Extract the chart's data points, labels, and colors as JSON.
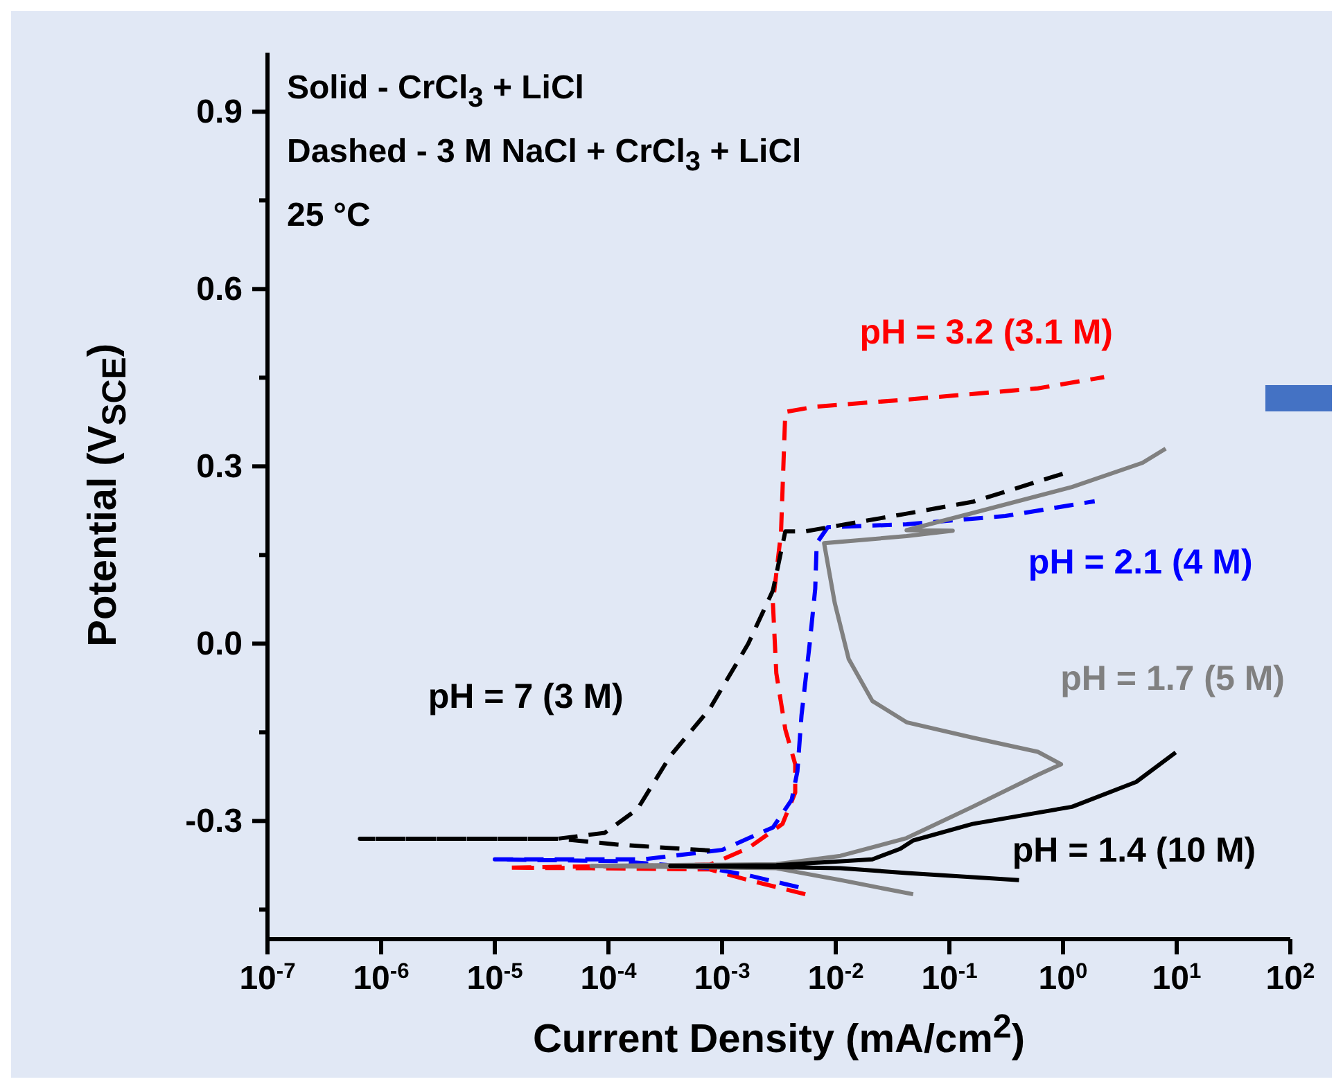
{
  "chart_data": {
    "type": "line",
    "xlabel": "Current Density (mA/cm$^{2}$)",
    "ylabel": "Potential (V$_{SCE}$)",
    "log": "x",
    "xlim": [
      1e-07,
      100
    ],
    "xticks": [
      {
        "value": 1e-07,
        "label": "10$^{-7}$"
      },
      {
        "value": 1e-06,
        "label": "10$^{-6}$"
      },
      {
        "value": 1e-05,
        "label": "10$^{-5}$"
      },
      {
        "value": 0.0001,
        "label": "10$^{-4}$"
      },
      {
        "value": 0.001,
        "label": "10$^{-3}$"
      },
      {
        "value": 0.01,
        "label": "10$^{-2}$"
      },
      {
        "value": 0.1,
        "label": "10$^{-1}$"
      },
      {
        "value": 1,
        "label": "10$^{0}$"
      },
      {
        "value": 10,
        "label": "10$^{1}$"
      },
      {
        "value": 100,
        "label": "10$^{2}$"
      }
    ],
    "ylim": [
      -0.5,
      1.0
    ],
    "yticks": [
      {
        "value": -0.45,
        "label": null
      },
      {
        "value": -0.3,
        "label": "-0.3"
      },
      {
        "value": -0.15,
        "label": null
      },
      {
        "value": 0,
        "label": "0.0"
      },
      {
        "value": 0.15,
        "label": null
      },
      {
        "value": 0.3,
        "label": "0.3"
      },
      {
        "value": 0.45,
        "label": null
      },
      {
        "value": 0.6,
        "label": "0.6"
      },
      {
        "value": 0.75,
        "label": null
      },
      {
        "value": 0.9,
        "label": "0.9"
      }
    ],
    "annotations": [
      "Solid - CrCl$_{3}$ + LiCl",
      "Dashed - 3 M NaCl + CrCl$_{3}$ + LiCl",
      "25 °C"
    ],
    "series": [
      {
        "name": "pH = 3.2 (3.1 M)",
        "color": "#ff0000",
        "line_style": "dashed",
        "x": [
          0.0054,
          0.0017,
          0.00078,
          7.1e-05,
          1.3e-05,
          0.00078,
          0.0017,
          0.0034,
          0.0044,
          0.0044,
          0.0036,
          0.003,
          0.0028,
          0.0033,
          0.0036,
          0.0066,
          0.042,
          0.6,
          2.3
        ],
        "values": [
          -0.424,
          -0.4,
          -0.382,
          -0.38,
          -0.379,
          -0.374,
          -0.346,
          -0.305,
          -0.252,
          -0.204,
          -0.145,
          -0.05,
          0.069,
          0.188,
          0.392,
          0.401,
          0.413,
          0.432,
          0.451
        ]
      },
      {
        "name": "pH = 2.1 (4 M)",
        "color": "#0000ff",
        "line_style": "dashed",
        "x": [
          0.0047,
          0.0017,
          0.00078,
          0.00012,
          1e-05,
          0.0002,
          0.001,
          0.0028,
          0.0041,
          0.0046,
          0.005,
          0.0059,
          0.0066,
          0.0068,
          0.0085,
          0.042,
          0.31,
          1.9
        ],
        "values": [
          -0.412,
          -0.392,
          -0.38,
          -0.368,
          -0.365,
          -0.365,
          -0.349,
          -0.311,
          -0.264,
          -0.216,
          -0.121,
          0.0,
          0.093,
          0.17,
          0.197,
          0.202,
          0.216,
          0.241
        ]
      },
      {
        "name": "pH = 7 (3 M)",
        "color": "#000000",
        "line_style": "dashed",
        "x": [
          0.00078,
          0.00012,
          3.6e-05,
          6.5e-07,
          3.6e-05,
          9.3e-05,
          0.00018,
          0.00035,
          0.00078,
          0.0017,
          0.0028,
          0.0036,
          0.0054,
          0.042,
          0.16,
          1.1
        ],
        "values": [
          -0.35,
          -0.34,
          -0.33,
          -0.33,
          -0.33,
          -0.32,
          -0.28,
          -0.19,
          -0.11,
          0.0,
          0.09,
          0.19,
          0.19,
          0.22,
          0.24,
          0.29
        ]
      },
      {
        "name": "pH = 1.7 (5 M)",
        "color": "#808080",
        "line_style": "solid",
        "x": [
          0.048,
          0.011,
          0.003,
          7.1e-05,
          0.003,
          0.011,
          0.042,
          0.16,
          0.6,
          0.96,
          0.6,
          0.16,
          0.042,
          0.021,
          0.013,
          0.0098,
          0.0079,
          0.042,
          0.107,
          0.042,
          0.16,
          1.2,
          5.0,
          8.0
        ],
        "values": [
          -0.424,
          -0.4,
          -0.38,
          -0.376,
          -0.373,
          -0.359,
          -0.329,
          -0.276,
          -0.222,
          -0.204,
          -0.183,
          -0.159,
          -0.133,
          -0.097,
          -0.026,
          0.069,
          0.17,
          0.182,
          0.191,
          0.192,
          0.221,
          0.265,
          0.306,
          0.33
        ]
      },
      {
        "name": "pH = 1.4 (10 M)",
        "color": "#000000",
        "line_style": "solid",
        "x": [
          0.41,
          0.042,
          0.011,
          0.003,
          0.00035,
          0.003,
          0.021,
          0.037,
          0.048,
          0.16,
          1.2,
          4.4,
          9.8
        ],
        "values": [
          -0.4,
          -0.388,
          -0.38,
          -0.378,
          -0.376,
          -0.375,
          -0.365,
          -0.347,
          -0.333,
          -0.305,
          -0.276,
          -0.234,
          -0.184
        ]
      }
    ]
  }
}
